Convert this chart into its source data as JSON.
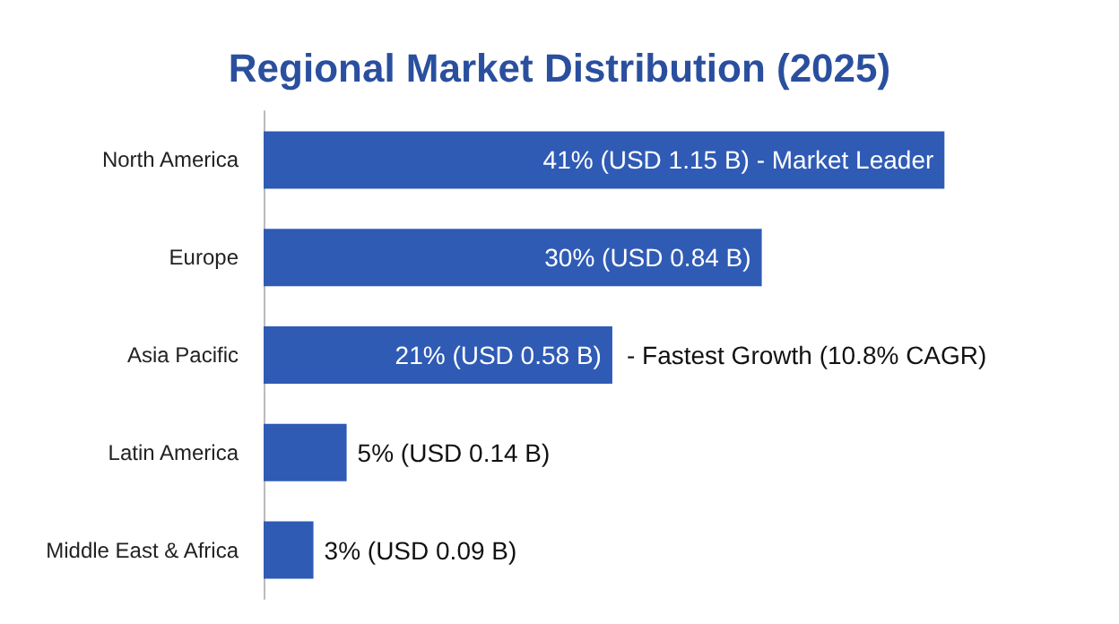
{
  "chart_data": {
    "type": "bar",
    "orientation": "horizontal",
    "title": "Regional Market Distribution (2025)",
    "categories": [
      "North America",
      "Europe",
      "Asia Pacific",
      "Latin America",
      "Middle East & Africa"
    ],
    "values": [
      41,
      30,
      21,
      5,
      3
    ],
    "value_labels": [
      "41% (USD 1.15 B) - Market Leader",
      "30% (USD 0.84 B)",
      "21% (USD 0.58 B)",
      "5% (USD 0.14 B)",
      "3% (USD 0.09 B)"
    ],
    "color": "#2f5bb5",
    "annotations": [
      {
        "text": "- Fastest Growth (10.8% CAGR)",
        "x": 21,
        "y": "Asia Pacific"
      }
    ],
    "grid": false
  }
}
